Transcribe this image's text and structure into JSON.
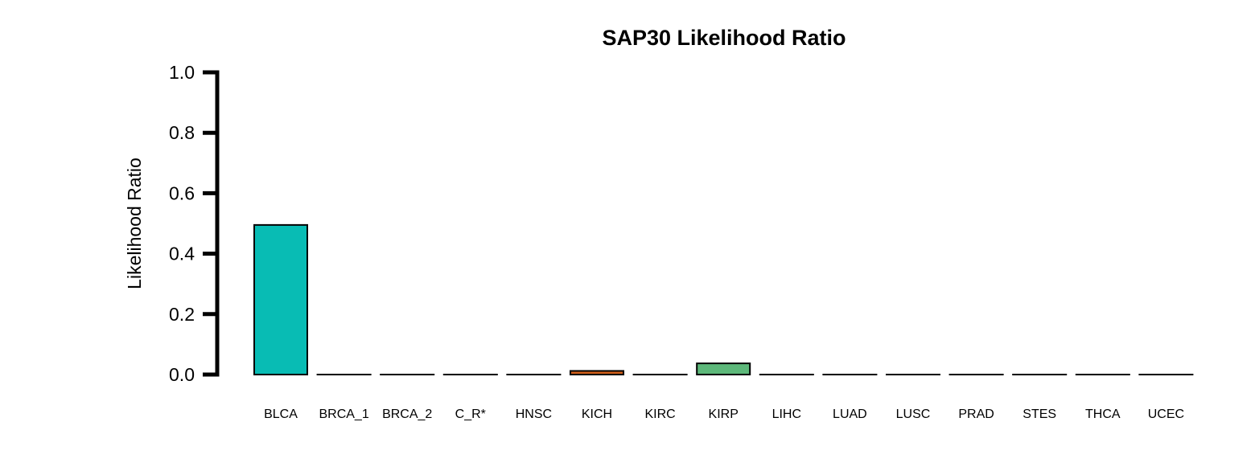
{
  "chart_data": {
    "type": "bar",
    "title": "SAP30 Likelihood Ratio",
    "xlabel": "",
    "ylabel": "Likelihood Ratio",
    "ylim": [
      0,
      1.0
    ],
    "yticks": [
      "0.0",
      "0.2",
      "0.4",
      "0.6",
      "0.8",
      "1.0"
    ],
    "grid": false,
    "categories": [
      "BLCA",
      "BRCA_1",
      "BRCA_2",
      "C_R*",
      "HNSC",
      "KICH",
      "KIRC",
      "KIRP",
      "LIHC",
      "LUAD",
      "LUSC",
      "PRAD",
      "STES",
      "THCA",
      "UCEC"
    ],
    "values": [
      0.495,
      0,
      0,
      0,
      0,
      0.012,
      0,
      0.037,
      0,
      0,
      0,
      0,
      0,
      0,
      0
    ],
    "colors": [
      "#08BCB4",
      "#08BCB4",
      "#08BCB4",
      "#08BCB4",
      "#08BCB4",
      "#D2601A",
      "#08BCB4",
      "#5DB87A",
      "#08BCB4",
      "#08BCB4",
      "#08BCB4",
      "#08BCB4",
      "#08BCB4",
      "#08BCB4",
      "#08BCB4"
    ]
  }
}
